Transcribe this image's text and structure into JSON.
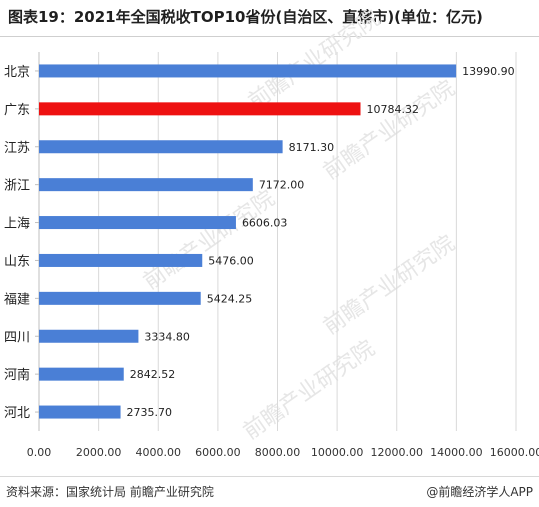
{
  "title": "图表19：2021年全国税收TOP10省份(自治区、直辖市)(单位：亿元)",
  "source": "资料来源：国家统计局 前瞻产业研究院",
  "brand": "@前瞻经济学人APP",
  "watermark": "前瞻产业研究院",
  "colors": {
    "default_bar": "#4a7fd6",
    "highlight_bar": "#ee1111"
  },
  "chart_data": {
    "type": "bar",
    "orientation": "horizontal",
    "title": "图表19：2021年全国税收TOP10省份(自治区、直辖市)(单位：亿元)",
    "categories": [
      "北京",
      "广东",
      "江苏",
      "浙江",
      "上海",
      "山东",
      "福建",
      "四川",
      "河南",
      "河北"
    ],
    "values": [
      13990.9,
      10784.32,
      8171.3,
      7172.0,
      6606.03,
      5476.0,
      5424.25,
      3334.8,
      2842.52,
      2735.7
    ],
    "value_labels": [
      "13990.90",
      "10784.32",
      "8171.30",
      "7172.00",
      "6606.03",
      "5476.00",
      "5424.25",
      "3334.80",
      "2842.52",
      "2735.70"
    ],
    "highlight_index": 1,
    "xlim": [
      0,
      16000
    ],
    "xticks": [
      "0.00",
      "2000.00",
      "4000.00",
      "6000.00",
      "8000.00",
      "10000.00",
      "12000.00",
      "14000.00",
      "16000.00"
    ],
    "xtick_values": [
      0,
      2000,
      4000,
      6000,
      8000,
      10000,
      12000,
      14000,
      16000
    ],
    "grid": true,
    "legend": "none"
  }
}
